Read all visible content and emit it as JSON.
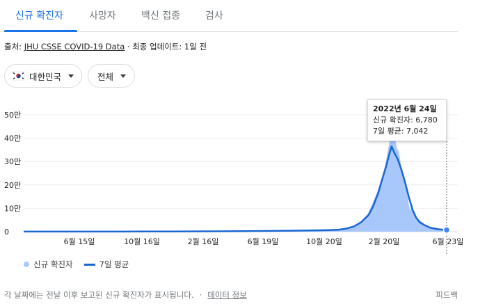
{
  "tabs": [
    {
      "label": "신규 확진자",
      "active": true
    },
    {
      "label": "사망자"
    },
    {
      "label": "백신 접종"
    },
    {
      "label": "검사"
    }
  ],
  "source": {
    "prefix": "출처: ",
    "link": "JHU CSSE COVID-19 Data",
    "suffix": " · 최종 업데이트: 1일 전"
  },
  "filters": {
    "region": "대한민국",
    "range": "전체"
  },
  "colors": {
    "accent": "#1a73e8",
    "bar_fill": "#a8c7fa",
    "avg_line": "#1967d2",
    "marker": "#4285f4"
  },
  "chart_data": {
    "type": "area",
    "y_labels": [
      "0",
      "10만",
      "20만",
      "30만",
      "40만",
      "50만"
    ],
    "y_values": [
      0,
      100000,
      200000,
      300000,
      400000,
      500000
    ],
    "ylim": [
      0,
      500000
    ],
    "x_labels": [
      "6월 15일",
      "10월 16일",
      "2월 16일",
      "6월 19일",
      "10월 20일",
      "2월 20일",
      "6월 23일"
    ],
    "series": [
      {
        "name": "신규 확진자",
        "points": [
          [
            0,
            0
          ],
          [
            20,
            200
          ],
          [
            40,
            300
          ],
          [
            60,
            150
          ],
          [
            80,
            100
          ],
          [
            90,
            300
          ],
          [
            100,
            500
          ],
          [
            110,
            600
          ],
          [
            120,
            700
          ],
          [
            130,
            1200
          ],
          [
            140,
            1400
          ],
          [
            150,
            1500
          ],
          [
            160,
            1600
          ],
          [
            170,
            2000
          ],
          [
            180,
            2500
          ],
          [
            190,
            3000
          ],
          [
            200,
            3200
          ],
          [
            210,
            3500
          ],
          [
            220,
            4500
          ],
          [
            230,
            5200
          ],
          [
            240,
            6000
          ],
          [
            250,
            7000
          ],
          [
            258,
            9000
          ],
          [
            264,
            14000
          ],
          [
            270,
            25000
          ],
          [
            276,
            45000
          ],
          [
            282,
            80000
          ],
          [
            286,
            130000
          ],
          [
            290,
            180000
          ],
          [
            293,
            230000
          ],
          [
            296,
            290000
          ],
          [
            298,
            350000
          ],
          [
            300,
            410000
          ],
          [
            302,
            440000
          ],
          [
            304,
            390000
          ],
          [
            305,
            360000
          ],
          [
            307,
            340000
          ],
          [
            309,
            270000
          ],
          [
            311,
            240000
          ],
          [
            313,
            190000
          ],
          [
            315,
            120000
          ],
          [
            316,
            90000
          ],
          [
            318,
            115000
          ],
          [
            320,
            60000
          ],
          [
            322,
            50000
          ],
          [
            325,
            45000
          ],
          [
            328,
            30000
          ],
          [
            331,
            20000
          ],
          [
            334,
            14000
          ],
          [
            338,
            10000
          ],
          [
            342,
            8000
          ],
          [
            346,
            6780
          ]
        ]
      },
      {
        "name": "7일 평균",
        "points": [
          [
            0,
            300
          ],
          [
            20,
            300
          ],
          [
            40,
            250
          ],
          [
            60,
            200
          ],
          [
            80,
            200
          ],
          [
            100,
            500
          ],
          [
            120,
            700
          ],
          [
            140,
            1300
          ],
          [
            160,
            1600
          ],
          [
            180,
            2400
          ],
          [
            200,
            3100
          ],
          [
            220,
            4300
          ],
          [
            240,
            5800
          ],
          [
            250,
            6800
          ],
          [
            258,
            8500
          ],
          [
            264,
            13000
          ],
          [
            270,
            22000
          ],
          [
            276,
            40000
          ],
          [
            282,
            70000
          ],
          [
            286,
            110000
          ],
          [
            290,
            165000
          ],
          [
            293,
            220000
          ],
          [
            296,
            270000
          ],
          [
            299,
            330000
          ],
          [
            301,
            365000
          ],
          [
            303,
            340000
          ],
          [
            306,
            310000
          ],
          [
            309,
            265000
          ],
          [
            312,
            210000
          ],
          [
            315,
            150000
          ],
          [
            318,
            95000
          ],
          [
            321,
            60000
          ],
          [
            324,
            40000
          ],
          [
            328,
            28000
          ],
          [
            332,
            18000
          ],
          [
            337,
            12000
          ],
          [
            342,
            9000
          ],
          [
            346,
            7042
          ]
        ]
      }
    ]
  },
  "tooltip": {
    "date": "2022년 6월 24일",
    "new_cases": "신규 확진자: 6,780",
    "avg": "7일 평균: 7,042"
  },
  "legend": {
    "bars": "신규 확진자",
    "line": "7일 평균"
  },
  "footer": {
    "note": "각 날짜에는 전날 이후 보고된 신규 확진자가 표시됩니다.",
    "sep": "·",
    "data_link": "데이터 정보",
    "feedback": "피드백"
  }
}
